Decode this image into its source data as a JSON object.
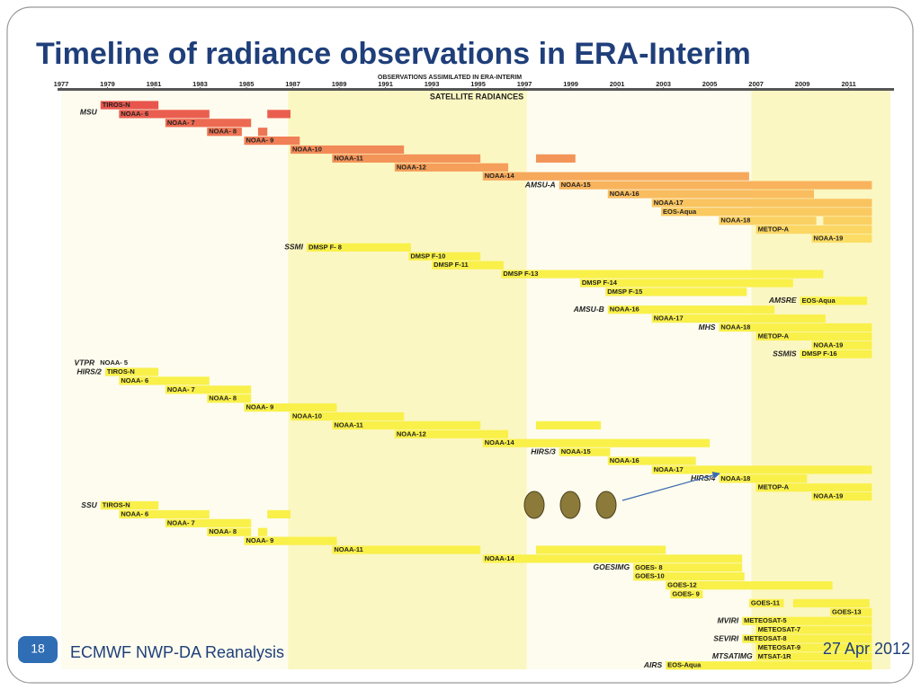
{
  "chart_data": {
    "type": "timeline",
    "title": "Timeline of radiance observations in ERA-Interim",
    "header": "OBSERVATIONS ASSIMILATED IN ERA-INTERIM",
    "subheader": "SATELLITE RADIANCES",
    "xlim": [
      1977,
      2012.8
    ],
    "xticks": [
      1977,
      1979,
      1981,
      1983,
      1985,
      1987,
      1989,
      1991,
      1993,
      1995,
      1997,
      1999,
      2001,
      2003,
      2005,
      2007,
      2009,
      2011
    ],
    "shaded": [
      [
        1986.8,
        1997.1
      ],
      [
        2006.8,
        2012.8
      ]
    ],
    "rows": [
      {
        "instrument": "MSU",
        "label": "TIROS-N",
        "color": "#e8554d",
        "segments": [
          [
            1978.7,
            1981.2
          ]
        ]
      },
      {
        "label": "NOAA- 6",
        "color": "#ea5e4f",
        "segments": [
          [
            1979.5,
            1983.4
          ],
          [
            1985.9,
            1986.9
          ]
        ]
      },
      {
        "label": "NOAA- 7",
        "color": "#ec6a52",
        "segments": [
          [
            1981.5,
            1985.2
          ]
        ]
      },
      {
        "label": "NOAA- 8",
        "color": "#ee7554",
        "segments": [
          [
            1983.3,
            1984.8
          ],
          [
            1985.5,
            1985.9
          ]
        ]
      },
      {
        "label": "NOAA- 9",
        "color": "#f07e56",
        "segments": [
          [
            1984.9,
            1987.3
          ]
        ]
      },
      {
        "label": "NOAA-10",
        "color": "#f28a58",
        "segments": [
          [
            1986.9,
            1991.8
          ]
        ]
      },
      {
        "label": "NOAA-11",
        "color": "#f39459",
        "segments": [
          [
            1988.7,
            1995.1
          ],
          [
            1997.5,
            1999.2
          ]
        ]
      },
      {
        "label": "NOAA-12",
        "color": "#f59f5a",
        "segments": [
          [
            1991.4,
            1996.3
          ]
        ]
      },
      {
        "label": "NOAA-14",
        "color": "#f6a95b",
        "segments": [
          [
            1995.2,
            2006.7
          ]
        ]
      },
      {
        "instrument": "AMSU-A",
        "label": "NOAA-15",
        "color": "#f8b35c",
        "segments": [
          [
            1998.5,
            2012
          ]
        ]
      },
      {
        "label": "NOAA-16",
        "color": "#f9bc5e",
        "segments": [
          [
            2000.6,
            2009.5
          ]
        ]
      },
      {
        "label": "NOAA-17",
        "color": "#f9c35f",
        "segments": [
          [
            2002.5,
            2012
          ]
        ]
      },
      {
        "label": "EOS-Aqua",
        "color": "#fac960",
        "segments": [
          [
            2002.9,
            2012
          ]
        ]
      },
      {
        "label": "NOAA-18",
        "color": "#fbd062",
        "segments": [
          [
            2005.4,
            2009.6
          ],
          [
            2009.9,
            2012
          ]
        ]
      },
      {
        "label": "METOP-A",
        "color": "#fbd663",
        "segments": [
          [
            2007,
            2012
          ]
        ]
      },
      {
        "label": "NOAA-19",
        "color": "#fcdc65",
        "segments": [
          [
            2009.4,
            2012
          ]
        ]
      },
      {
        "instrument": "SSMI",
        "label": "DMSP F- 8",
        "color": "#f9f04a",
        "segments": [
          [
            1987.6,
            1992.1
          ]
        ]
      },
      {
        "label": "DMSP F-10",
        "color": "#f9f04a",
        "segments": [
          [
            1992,
            1995.1
          ]
        ]
      },
      {
        "label": "DMSP F-11",
        "color": "#f9f04a",
        "segments": [
          [
            1993,
            1996.1
          ]
        ]
      },
      {
        "label": "DMSP F-13",
        "color": "#f9f04a",
        "segments": [
          [
            1996,
            2009.9
          ]
        ]
      },
      {
        "label": "DMSP F-14",
        "color": "#f9f04a",
        "segments": [
          [
            1999.4,
            2008.6
          ]
        ]
      },
      {
        "label": "DMSP F-15",
        "color": "#f9f04a",
        "segments": [
          [
            2000.5,
            2006.6
          ]
        ]
      },
      {
        "instrument": "AMSRE",
        "label": "EOS-Aqua",
        "color": "#f9f04a",
        "segments": [
          [
            2008.9,
            2011.8
          ]
        ]
      },
      {
        "instrument": "AMSU-B",
        "label": "NOAA-16",
        "color": "#f9f04a",
        "segments": [
          [
            2000.6,
            2007.8
          ]
        ]
      },
      {
        "label": "NOAA-17",
        "color": "#f9f04a",
        "segments": [
          [
            2002.5,
            2010
          ]
        ]
      },
      {
        "instrument": "MHS",
        "label": "NOAA-18",
        "color": "#f9f04a",
        "segments": [
          [
            2005.4,
            2012
          ]
        ]
      },
      {
        "label": "METOP-A",
        "color": "#f9f04a",
        "segments": [
          [
            2007,
            2012
          ]
        ]
      },
      {
        "label": "NOAA-19",
        "color": "#f9f04a",
        "segments": [
          [
            2009.4,
            2012
          ]
        ]
      },
      {
        "instrument": "SSMIS",
        "label": "DMSP F-16",
        "color": "#f9f04a",
        "segments": [
          [
            2008.9,
            2012
          ]
        ]
      },
      {
        "instrument": "VTPR",
        "label": "NOAA- 5",
        "color": "#f9f04a",
        "segments": []
      },
      {
        "instrument": "HIRS/2",
        "label": "TIROS-N",
        "color": "#f9f04a",
        "segments": [
          [
            1978.9,
            1981.2
          ]
        ]
      },
      {
        "label": "NOAA- 6",
        "color": "#f9f04a",
        "segments": [
          [
            1979.5,
            1983.4
          ]
        ]
      },
      {
        "label": "NOAA- 7",
        "color": "#f9f04a",
        "segments": [
          [
            1981.5,
            1985.2
          ]
        ]
      },
      {
        "label": "NOAA- 8",
        "color": "#f9f04a",
        "segments": [
          [
            1983.3,
            1985.2
          ]
        ]
      },
      {
        "label": "NOAA- 9",
        "color": "#f9f04a",
        "segments": [
          [
            1984.9,
            1988.9
          ]
        ]
      },
      {
        "label": "NOAA-10",
        "color": "#f9f04a",
        "segments": [
          [
            1986.9,
            1991.8
          ]
        ]
      },
      {
        "label": "NOAA-11",
        "color": "#f9f04a",
        "segments": [
          [
            1988.7,
            1995.1
          ],
          [
            1997.5,
            2000.3
          ]
        ]
      },
      {
        "label": "NOAA-12",
        "color": "#f9f04a",
        "segments": [
          [
            1991.4,
            1996.3
          ]
        ]
      },
      {
        "label": "NOAA-14",
        "color": "#f9f04a",
        "segments": [
          [
            1995.2,
            2005
          ]
        ]
      },
      {
        "instrument": "HIRS/3",
        "label": "NOAA-15",
        "color": "#f9f04a",
        "segments": [
          [
            1998.5,
            2000.7
          ]
        ]
      },
      {
        "label": "NOAA-16",
        "color": "#f9f04a",
        "segments": [
          [
            2000.6,
            2004.4
          ]
        ]
      },
      {
        "label": "NOAA-17",
        "color": "#f9f04a",
        "segments": [
          [
            2002.5,
            2012
          ]
        ]
      },
      {
        "instrument": "HIRS/4",
        "label": "NOAA-18",
        "color": "#f9f04a",
        "segments": [
          [
            2005.4,
            2009.2
          ]
        ]
      },
      {
        "label": "METOP-A",
        "color": "#f9f04a",
        "segments": [
          [
            2007,
            2012
          ]
        ]
      },
      {
        "label": "NOAA-19",
        "color": "#f9f04a",
        "segments": [
          [
            2009.4,
            2012
          ]
        ]
      },
      {
        "instrument": "SSU",
        "label": "TIROS-N",
        "color": "#f9f04a",
        "segments": [
          [
            1978.7,
            1981.2
          ]
        ]
      },
      {
        "label": "NOAA- 6",
        "color": "#f9f04a",
        "segments": [
          [
            1979.5,
            1983.4
          ],
          [
            1985.9,
            1986.9
          ]
        ]
      },
      {
        "label": "NOAA- 7",
        "color": "#f9f04a",
        "segments": [
          [
            1981.5,
            1985.2
          ]
        ]
      },
      {
        "label": "NOAA- 8",
        "color": "#f9f04a",
        "segments": [
          [
            1983.3,
            1985.2
          ],
          [
            1985.5,
            1985.9
          ]
        ]
      },
      {
        "label": "NOAA- 9",
        "color": "#f9f04a",
        "segments": [
          [
            1984.9,
            1988.9
          ]
        ]
      },
      {
        "label": "NOAA-11",
        "color": "#f9f04a",
        "segments": [
          [
            1988.7,
            1995.1
          ],
          [
            1997.5,
            2003.1
          ]
        ]
      },
      {
        "label": "NOAA-14",
        "color": "#f9f04a",
        "segments": [
          [
            1995.2,
            2006.4
          ]
        ]
      },
      {
        "instrument": "GOESIMG",
        "label": "GOES- 8",
        "color": "#f9f04a",
        "segments": [
          [
            2001.7,
            2006.4
          ]
        ]
      },
      {
        "label": "GOES-10",
        "color": "#f9f04a",
        "segments": [
          [
            2001.7,
            2006.5
          ]
        ]
      },
      {
        "label": "GOES-12",
        "color": "#f9f04a",
        "segments": [
          [
            2003.1,
            2010.3
          ]
        ]
      },
      {
        "label": "GOES- 9",
        "color": "#f9f04a",
        "segments": [
          [
            2003.3,
            2004.7
          ]
        ]
      },
      {
        "label": "GOES-11",
        "color": "#f9f04a",
        "segments": [
          [
            2006.7,
            2008.2
          ],
          [
            2008.6,
            2011.9
          ]
        ]
      },
      {
        "label": "GOES-13",
        "color": "#f9f04a",
        "segments": [
          [
            2010.2,
            2012
          ]
        ]
      },
      {
        "instrument": "MVIRI",
        "label": "METEOSAT-5",
        "color": "#f9f04a",
        "segments": [
          [
            2006.4,
            2012
          ]
        ]
      },
      {
        "label": "METEOSAT-7",
        "color": "#f9f04a",
        "segments": [
          [
            2007,
            2012
          ]
        ]
      },
      {
        "instrument": "SEVIRI",
        "label": "METEOSAT-8",
        "color": "#f9f04a",
        "segments": [
          [
            2006.4,
            2012
          ]
        ]
      },
      {
        "label": "METEOSAT-9",
        "color": "#f9f04a",
        "segments": [
          [
            2007,
            2012
          ]
        ]
      },
      {
        "instrument": "MTSATIMG",
        "label": "MTSAT-1R",
        "color": "#f9f04a",
        "segments": [
          [
            2007,
            2012
          ]
        ]
      },
      {
        "instrument": "AIRS",
        "label": "EOS-Aqua",
        "color": "#f9f04a",
        "segments": [
          [
            2003.1,
            2012
          ]
        ]
      }
    ]
  },
  "footer": {
    "page_number": "18",
    "text": "ECMWF NWP-DA Reanalysis",
    "date": "27 Apr 2012"
  }
}
